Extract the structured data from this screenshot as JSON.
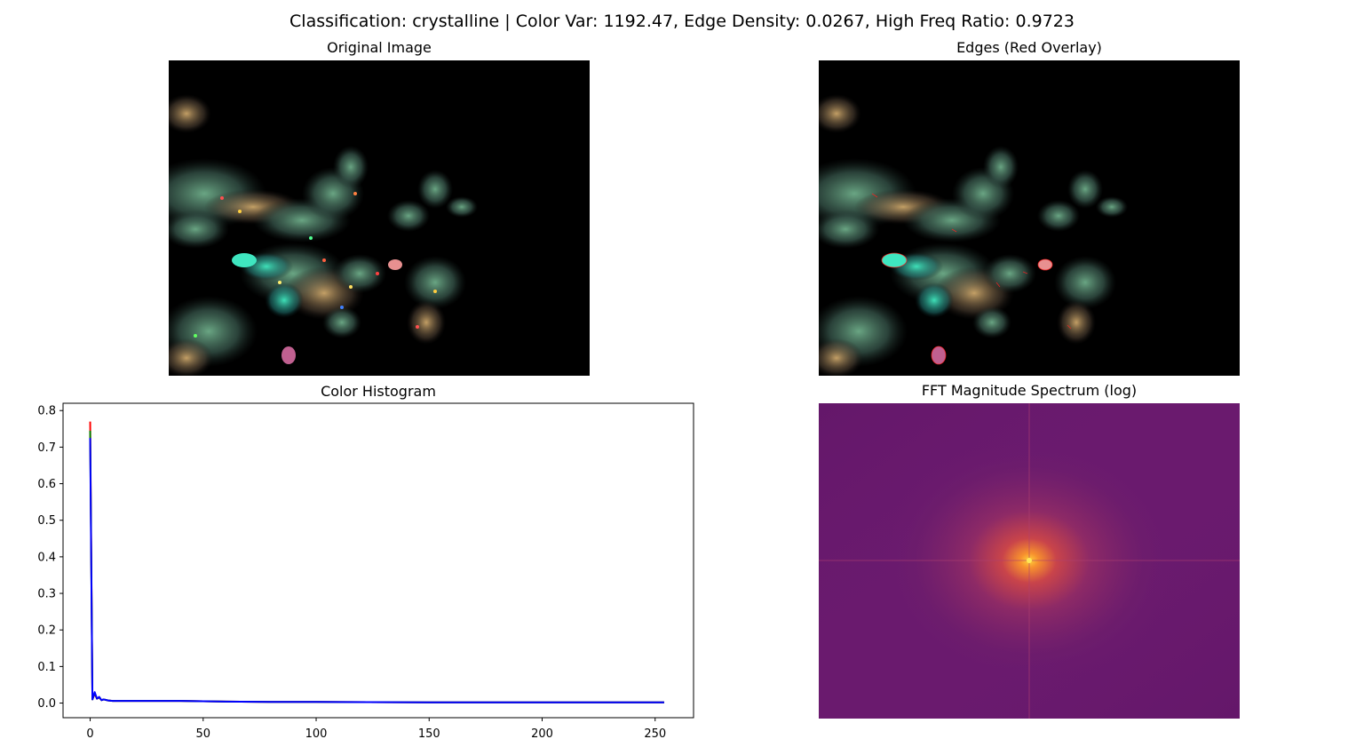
{
  "figure": {
    "suptitle": "Classification: crystalline | Color Var: 1192.47, Edge Density: 0.0267, High Freq Ratio: 0.9723"
  },
  "panels": {
    "original": {
      "title": "Original Image"
    },
    "edges": {
      "title": "Edges (Red Overlay)"
    },
    "histogram": {
      "title": "Color Histogram"
    },
    "fft": {
      "title": "FFT Magnitude Spectrum (log)"
    }
  },
  "colors": {
    "red": "#ff0000",
    "green": "#008000",
    "blue": "#0000ff",
    "fft_background": "#6a1a6e",
    "fft_center": "#ffcc33"
  },
  "chart_data": {
    "type": "line",
    "title": "Color Histogram",
    "xlabel": "",
    "ylabel": "",
    "xlim": [
      -12,
      267
    ],
    "ylim": [
      -0.04,
      0.82
    ],
    "xticks": [
      0,
      50,
      100,
      150,
      200,
      250
    ],
    "yticks": [
      0.0,
      0.1,
      0.2,
      0.3,
      0.4,
      0.5,
      0.6,
      0.7,
      0.8
    ],
    "xtick_labels": [
      "0",
      "50",
      "100",
      "150",
      "200",
      "250"
    ],
    "ytick_labels": [
      "0.0",
      "0.1",
      "0.2",
      "0.3",
      "0.4",
      "0.5",
      "0.6",
      "0.7",
      "0.8"
    ],
    "series": [
      {
        "name": "red",
        "color": "#ff0000",
        "x": [
          0,
          1,
          2,
          3,
          4,
          5,
          6,
          8,
          10,
          15,
          20,
          30,
          40,
          50,
          60,
          80,
          100,
          150,
          200,
          254
        ],
        "y": [
          0.77,
          0.01,
          0.025,
          0.012,
          0.015,
          0.008,
          0.01,
          0.007,
          0.006,
          0.006,
          0.006,
          0.006,
          0.006,
          0.005,
          0.004,
          0.003,
          0.003,
          0.002,
          0.002,
          0.002
        ]
      },
      {
        "name": "green",
        "color": "#008000",
        "x": [
          0,
          1,
          2,
          3,
          4,
          5,
          6,
          8,
          10,
          15,
          20,
          30,
          40,
          50,
          60,
          80,
          100,
          150,
          200,
          254
        ],
        "y": [
          0.745,
          0.01,
          0.028,
          0.012,
          0.016,
          0.008,
          0.01,
          0.007,
          0.006,
          0.006,
          0.006,
          0.006,
          0.006,
          0.005,
          0.004,
          0.003,
          0.003,
          0.002,
          0.002,
          0.002
        ]
      },
      {
        "name": "blue",
        "color": "#0000ff",
        "x": [
          0,
          1,
          2,
          3,
          4,
          5,
          6,
          8,
          10,
          15,
          20,
          30,
          40,
          50,
          60,
          80,
          100,
          150,
          200,
          254
        ],
        "y": [
          0.725,
          0.01,
          0.03,
          0.012,
          0.017,
          0.008,
          0.01,
          0.007,
          0.006,
          0.006,
          0.006,
          0.006,
          0.006,
          0.005,
          0.004,
          0.003,
          0.003,
          0.002,
          0.002,
          0.002
        ]
      }
    ]
  }
}
